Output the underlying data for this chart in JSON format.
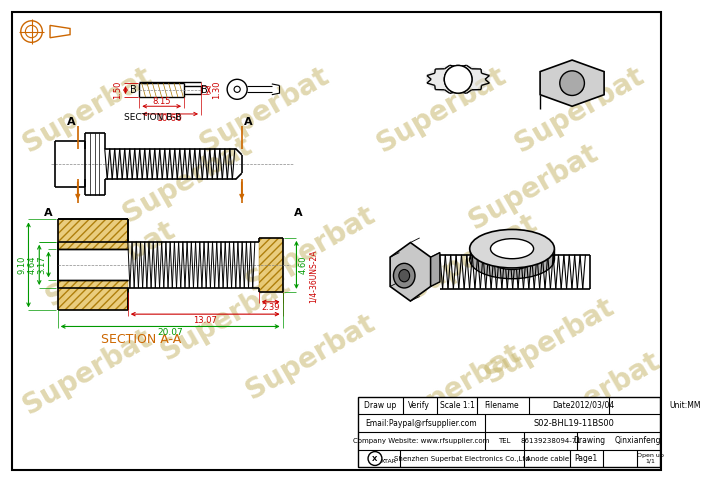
{
  "bg_color": "#ffffff",
  "line_color": "#000000",
  "dim_color": "#cc0000",
  "green_dim_color": "#009900",
  "orange_color": "#cc6600",
  "hatch_color": "#cc8800",
  "watermark_color": "#c8b870",
  "watermark": "Superbat",
  "dim_150": "1.50",
  "dim_815": "8.15",
  "dim_1060": "10.60",
  "dim_130": "1.30",
  "dim_910": "9.10",
  "dim_464": "4.64",
  "dim_317": "3.17",
  "dim_460": "4.60",
  "dim_239": "2.39",
  "dim_1307": "13.07",
  "dim_2007": "20.07",
  "thread_label": "1/4-36UNS-2A",
  "sec_aa": "SECTION A-A",
  "sec_bb": "SECTION B-B",
  "tbl_r1": [
    "Draw up",
    "Verify",
    "Scale 1:1",
    "Filename",
    "Date2012/03/04",
    "Unit:MM"
  ],
  "tbl_r2a": "Email:Paypal@rfsupplier.com",
  "tbl_r2b": "S02-BHL19-11BS00",
  "tbl_r3a": "Company Website: www.rfsupplier.com",
  "tbl_r3b": "TEL 86139238094-71",
  "tbl_r3c": "Drawing",
  "tbl_r3d": "Qinxianfeng",
  "tbl_r4a": "XTAR",
  "tbl_r4b": "Shenzhen Superbat Electronics Co.,Ltd",
  "tbl_r4c": "Anode cable",
  "tbl_r4d": "Page1",
  "tbl_r4e": "Open up\n1/1"
}
